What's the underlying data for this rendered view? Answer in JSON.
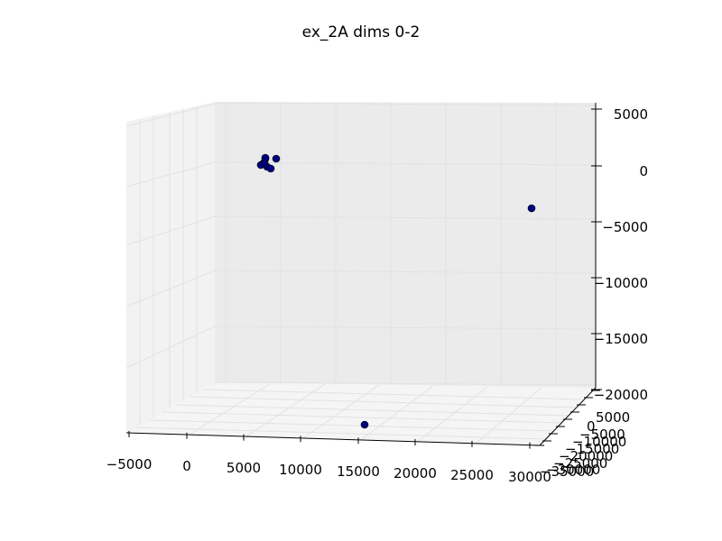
{
  "chart_data": {
    "type": "scatter",
    "projection": "3d",
    "title": "ex_2A dims 0-2",
    "xlabel": "",
    "ylabel": "",
    "zlabel": "",
    "xlim": [
      -5000,
      30000
    ],
    "ylim": [
      -35000,
      7500
    ],
    "zlim": [
      -20000,
      6000
    ],
    "x_ticks": [
      "−5000",
      "0",
      "5000",
      "10000",
      "15000",
      "20000",
      "25000",
      "30000"
    ],
    "y_ticks": [
      "5000",
      "0",
      "−5000",
      "−10000",
      "−15000",
      "−20000",
      "−25000",
      "−30000",
      "−35000"
    ],
    "z_ticks": [
      "5000",
      "0",
      "−5000",
      "−10000",
      "−15000",
      "−20000"
    ],
    "grid": true,
    "marker_color": "#00007f",
    "pane_color": "#f2f2f2",
    "points": [
      {
        "x": 0,
        "y": 0,
        "z": 0
      },
      {
        "x": 80,
        "y": 150,
        "z": 400
      },
      {
        "x": -100,
        "y": -200,
        "z": 300
      },
      {
        "x": 200,
        "y": 100,
        "z": -200
      },
      {
        "x": 400,
        "y": 0,
        "z": 200
      },
      {
        "x": 600,
        "y": -100,
        "z": -300
      },
      {
        "x": 200,
        "y": 200,
        "z": 900
      },
      {
        "x": 1500,
        "y": 0,
        "z": 400
      },
      {
        "x": 30000,
        "y": 0,
        "z": -3800
      },
      {
        "x": 16500,
        "y": -5000,
        "z": -22000
      }
    ]
  }
}
